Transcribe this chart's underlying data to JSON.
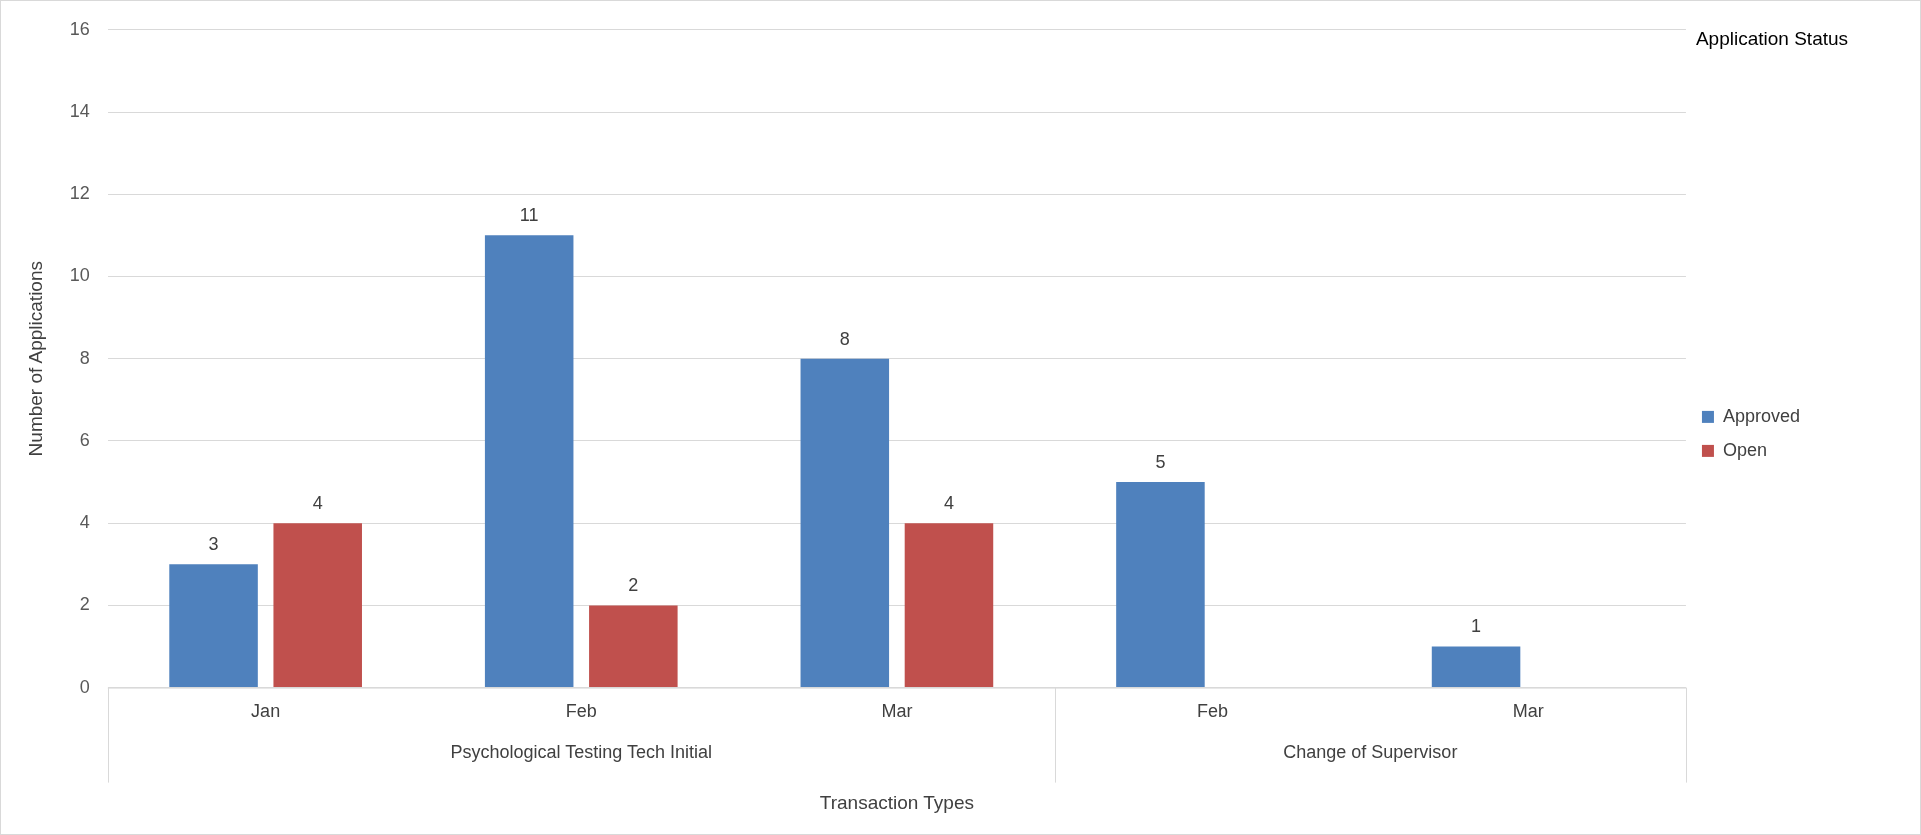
{
  "chart_data": {
    "type": "bar",
    "categories": [
      "Jan",
      "Feb",
      "Mar",
      "Feb",
      "Mar"
    ],
    "series": [
      {
        "name": "Approved",
        "color": "#4f81bd",
        "values": [
          3,
          11,
          8,
          5,
          1
        ]
      },
      {
        "name": "Open",
        "color": "#c0504d",
        "values": [
          4,
          2,
          4,
          null,
          null
        ]
      }
    ],
    "xlabel": "Transaction Types",
    "ylabel": "Number of Applications",
    "legend_title": "Application Status",
    "annotations": [
      "Psychological Testing Tech Initial",
      "Change of Supervisor"
    ],
    "ylim": [
      0,
      16
    ],
    "yticks": [
      0,
      2,
      4,
      6,
      8,
      10,
      12,
      14,
      16
    ],
    "grid": "y",
    "legend": "right",
    "data_labels": true
  }
}
